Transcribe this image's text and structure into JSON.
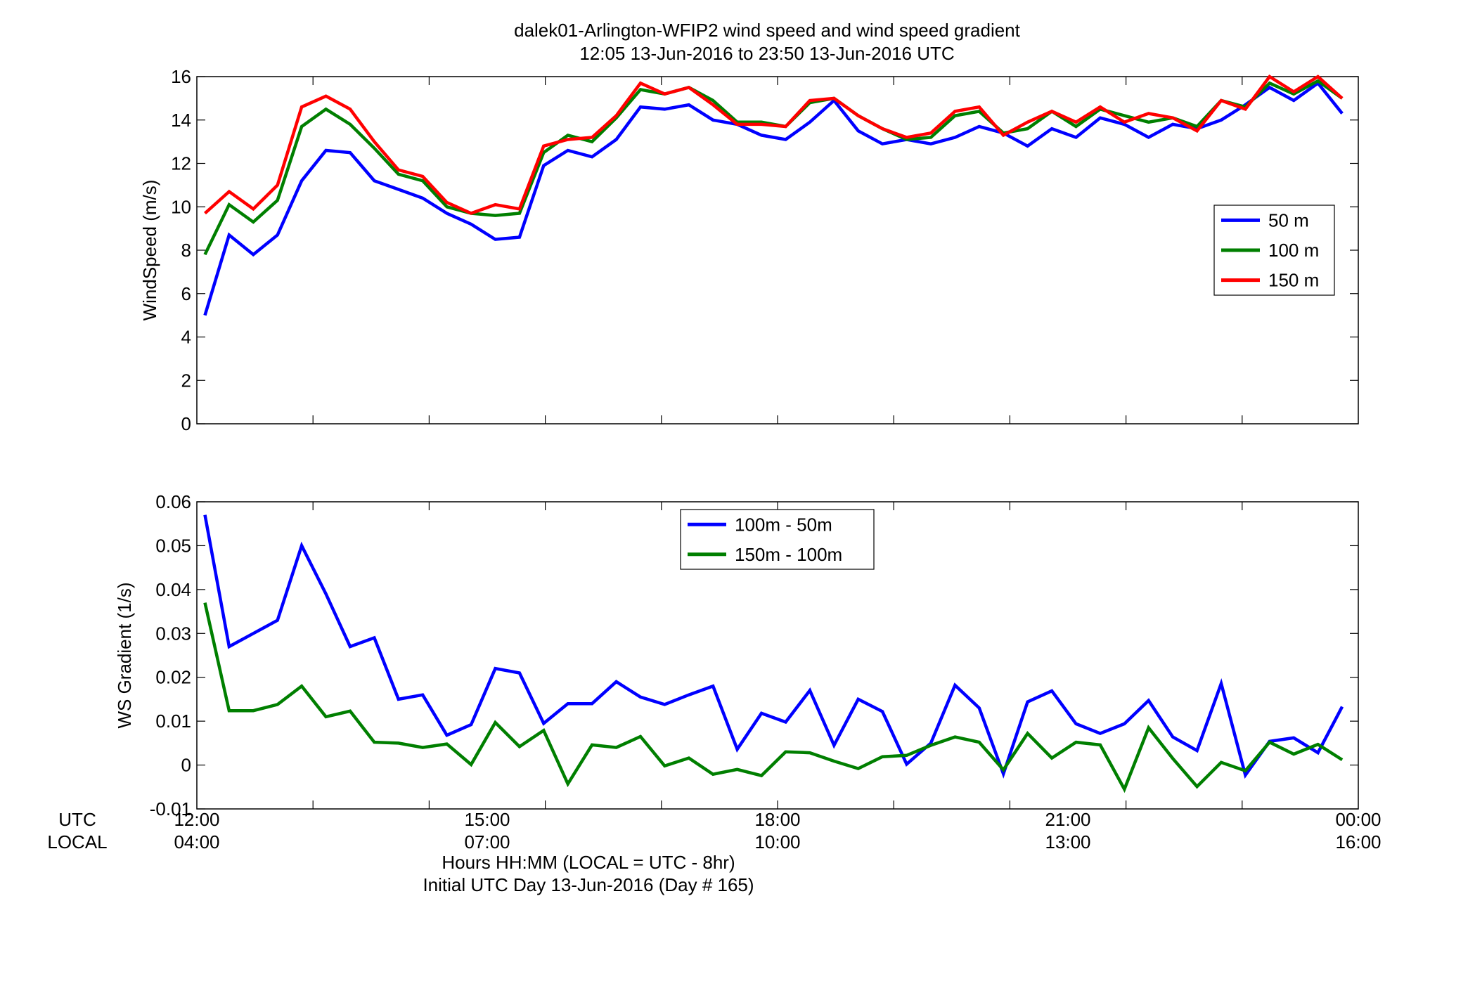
{
  "figure": {
    "title_line1": "dalek01-Arlington-WFIP2  wind speed and wind speed gradient",
    "title_line2": "12:05 13-Jun-2016 to 23:50 13-Jun-2016  UTC",
    "xlabel_line1": "Hours HH:MM  (LOCAL = UTC - 8hr)",
    "xlabel_line2": "Initial UTC Day 13-Jun-2016 (Day # 165)",
    "row_label_utc": "UTC",
    "row_label_local": "LOCAL",
    "x_tick_hours": [
      12,
      15,
      18,
      21,
      24
    ],
    "x_tick_labels_utc": [
      "12:00",
      "15:00",
      "18:00",
      "21:00",
      "00:00"
    ],
    "x_tick_labels_local": [
      "04:00",
      "07:00",
      "10:00",
      "13:00",
      "16:00"
    ]
  },
  "chart_data": [
    {
      "type": "line",
      "ylabel": "WindSpeed (m/s)",
      "xlim": [
        12,
        24
      ],
      "ylim": [
        0,
        16
      ],
      "y_ticks": [
        0,
        2,
        4,
        6,
        8,
        10,
        12,
        14,
        16
      ],
      "x_minor_ticks": [
        13.2,
        14.4,
        15.6,
        16.8,
        18,
        19.2,
        20.4,
        21.6,
        22.8
      ],
      "grid": false,
      "legend_position": "right",
      "x_hours": [
        12.0833,
        12.3333,
        12.5833,
        12.8333,
        13.0833,
        13.3333,
        13.5833,
        13.8333,
        14.0833,
        14.3333,
        14.5833,
        14.8333,
        15.0833,
        15.3333,
        15.5833,
        15.8333,
        16.0833,
        16.3333,
        16.5833,
        16.8333,
        17.0833,
        17.3333,
        17.5833,
        17.8333,
        18.0833,
        18.3333,
        18.5833,
        18.8333,
        19.0833,
        19.3333,
        19.5833,
        19.8333,
        20.0833,
        20.3333,
        20.5833,
        20.8333,
        21.0833,
        21.3333,
        21.5833,
        21.8333,
        22.0833,
        22.3333,
        22.5833,
        22.8333,
        23.0833,
        23.3333,
        23.5833,
        23.8333
      ],
      "series": [
        {
          "name": "50 m",
          "color": "#0000ff",
          "values": [
            5.0,
            8.7,
            7.8,
            8.7,
            11.2,
            12.6,
            12.5,
            11.2,
            10.8,
            10.4,
            9.7,
            9.2,
            8.5,
            8.6,
            11.9,
            12.6,
            12.3,
            13.1,
            14.6,
            14.5,
            14.7,
            14.0,
            13.8,
            13.3,
            13.1,
            13.9,
            14.9,
            13.5,
            12.9,
            13.1,
            12.9,
            13.2,
            13.7,
            13.4,
            12.8,
            13.6,
            13.2,
            14.1,
            13.8,
            13.2,
            13.8,
            13.6,
            14.0,
            14.7,
            15.5,
            14.9,
            15.7,
            14.3
          ]
        },
        {
          "name": "100 m",
          "color": "#007f00",
          "values": [
            7.8,
            10.1,
            9.3,
            10.3,
            13.7,
            14.5,
            13.8,
            12.7,
            11.5,
            11.2,
            10.0,
            9.7,
            9.6,
            9.7,
            12.5,
            13.3,
            13.0,
            14.1,
            15.4,
            15.2,
            15.5,
            14.9,
            13.9,
            13.9,
            13.7,
            14.8,
            15.0,
            14.2,
            13.6,
            13.1,
            13.2,
            14.2,
            14.4,
            13.4,
            13.6,
            14.4,
            13.7,
            14.5,
            14.2,
            13.9,
            14.1,
            13.7,
            14.9,
            14.6,
            15.7,
            15.2,
            15.8,
            15.0
          ]
        },
        {
          "name": "150 m",
          "color": "#ff0000",
          "values": [
            9.7,
            10.7,
            9.9,
            11.0,
            14.6,
            15.1,
            14.5,
            13.0,
            11.7,
            11.4,
            10.2,
            9.7,
            10.1,
            9.9,
            12.8,
            13.1,
            13.2,
            14.2,
            15.7,
            15.2,
            15.5,
            14.7,
            13.8,
            13.8,
            13.7,
            14.9,
            15.0,
            14.2,
            13.6,
            13.2,
            13.4,
            14.4,
            14.6,
            13.3,
            13.9,
            14.4,
            13.9,
            14.6,
            13.9,
            14.3,
            14.1,
            13.5,
            14.9,
            14.5,
            16.0,
            15.3,
            16.0,
            15.0
          ]
        }
      ]
    },
    {
      "type": "line",
      "ylabel": "WS Gradient (1/s)",
      "xlim": [
        12,
        24
      ],
      "ylim": [
        -0.01,
        0.06
      ],
      "y_ticks": [
        -0.01,
        0,
        0.01,
        0.02,
        0.03,
        0.04,
        0.05,
        0.06
      ],
      "y_tick_labels": [
        "-0.01",
        "0",
        "0.01",
        "0.02",
        "0.03",
        "0.04",
        "0.05",
        "0.06"
      ],
      "x_minor_ticks": [
        13.2,
        14.4,
        15.6,
        16.8,
        18,
        19.2,
        20.4,
        21.6,
        22.8
      ],
      "grid": false,
      "legend_position": "top-center",
      "x_hours": [
        12.0833,
        12.3333,
        12.5833,
        12.8333,
        13.0833,
        13.3333,
        13.5833,
        13.8333,
        14.0833,
        14.3333,
        14.5833,
        14.8333,
        15.0833,
        15.3333,
        15.5833,
        15.8333,
        16.0833,
        16.3333,
        16.5833,
        16.8333,
        17.0833,
        17.3333,
        17.5833,
        17.8333,
        18.0833,
        18.3333,
        18.5833,
        18.8333,
        19.0833,
        19.3333,
        19.5833,
        19.8333,
        20.0833,
        20.3333,
        20.5833,
        20.8333,
        21.0833,
        21.3333,
        21.5833,
        21.8333,
        22.0833,
        22.3333,
        22.5833,
        22.8333,
        23.0833,
        23.3333,
        23.5833,
        23.8333
      ],
      "series": [
        {
          "name": "100m - 50m",
          "color": "#0000ff",
          "values": [
            0.057,
            0.027,
            0.03,
            0.033,
            0.05,
            0.039,
            0.027,
            0.029,
            0.015,
            0.016,
            0.0068,
            0.0092,
            0.022,
            0.021,
            0.0095,
            0.014,
            0.014,
            0.019,
            0.0155,
            0.0138,
            0.016,
            0.018,
            0.0036,
            0.0118,
            0.0098,
            0.017,
            0.0045,
            0.015,
            0.0122,
            0.0002,
            0.005,
            0.0182,
            0.013,
            -0.002,
            0.0144,
            0.0169,
            0.0094,
            0.0072,
            0.0094,
            0.0147,
            0.0064,
            0.0033,
            0.0186,
            -0.0023,
            0.0054,
            0.0062,
            0.0028,
            0.0133
          ]
        },
        {
          "name": "150m - 100m",
          "color": "#007f00",
          "values": [
            0.037,
            0.0124,
            0.0124,
            0.0138,
            0.018,
            0.011,
            0.0123,
            0.0052,
            0.005,
            0.004,
            0.0048,
            0.0001,
            0.0097,
            0.0042,
            0.0079,
            -0.0043,
            0.0046,
            0.004,
            0.0065,
            -0.0002,
            0.0016,
            -0.0021,
            -0.001,
            -0.0024,
            0.003,
            0.0028,
            0.0009,
            -0.0008,
            0.0019,
            0.0022,
            0.0045,
            0.0064,
            0.0052,
            -0.0011,
            0.0072,
            0.0016,
            0.0052,
            0.0046,
            -0.0055,
            0.0085,
            0.0015,
            -0.0049,
            0.0006,
            -0.0013,
            0.0052,
            0.0025,
            0.0047,
            0.0012
          ]
        }
      ]
    }
  ]
}
